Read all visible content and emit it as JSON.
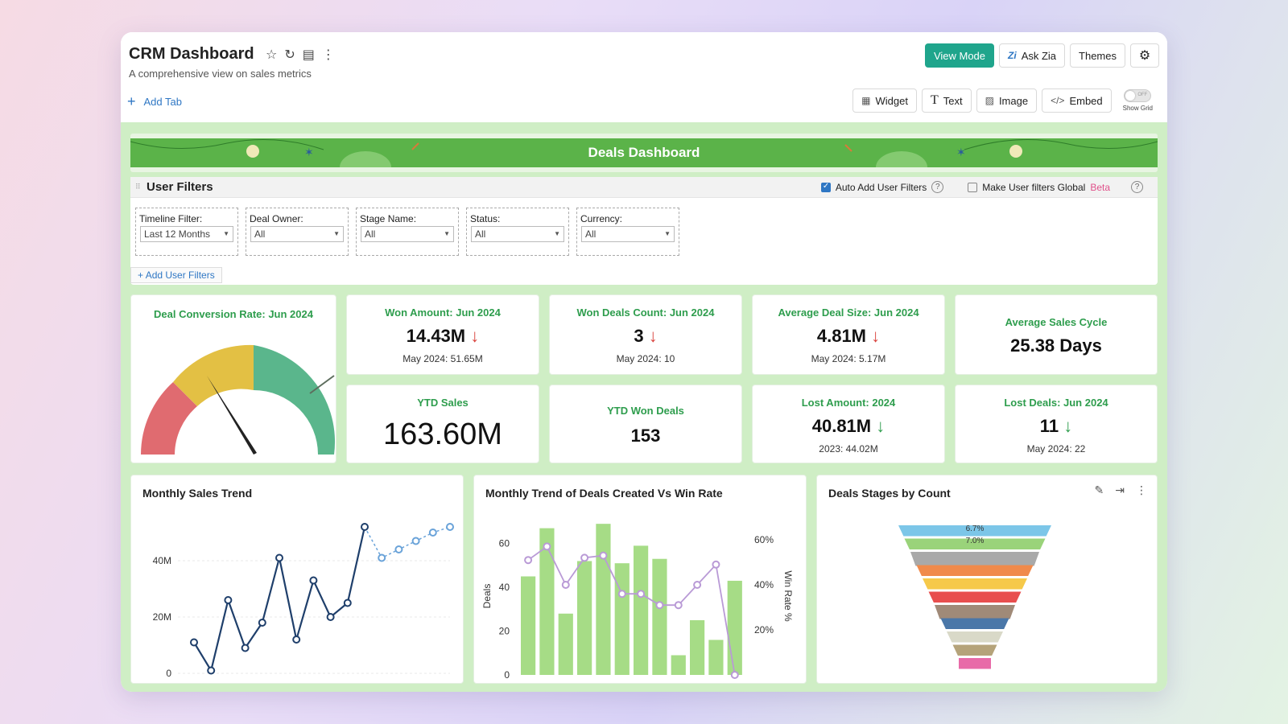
{
  "header": {
    "title": "CRM Dashboard",
    "subtitle": "A comprehensive view on sales metrics",
    "view_mode": "View Mode",
    "ask_zia": "Ask Zia",
    "themes": "Themes",
    "add_tab": "Add Tab"
  },
  "toolbar": {
    "widget": "Widget",
    "text": "Text",
    "image": "Image",
    "embed": "Embed",
    "toggle_state": "OFF",
    "show_grid": "Show Grid"
  },
  "banner": {
    "title": "Deals Dashboard"
  },
  "user_filters": {
    "title": "User Filters",
    "auto_add": "Auto Add User Filters",
    "auto_add_checked": true,
    "make_global": "Make User filters Global",
    "make_global_checked": false,
    "beta": "Beta",
    "add_filters": "Add User Filters",
    "filters": [
      {
        "label": "Timeline Filter:",
        "value": "Last 12 Months"
      },
      {
        "label": "Deal Owner:",
        "value": "All"
      },
      {
        "label": "Stage Name:",
        "value": "All"
      },
      {
        "label": "Status:",
        "value": "All"
      },
      {
        "label": "Currency:",
        "value": "All"
      }
    ]
  },
  "gauge": {
    "title": "Deal Conversion Rate: Jun 2024"
  },
  "kpis": {
    "won_amount": {
      "title": "Won Amount: Jun 2024",
      "value": "14.43M",
      "sub": "May 2024: 51.65M",
      "arrow": "↓"
    },
    "won_count": {
      "title": "Won Deals Count: Jun 2024",
      "value": "3",
      "sub": "May 2024: 10",
      "arrow": "↓"
    },
    "avg_deal": {
      "title": "Average Deal Size: Jun 2024",
      "value": "4.81M",
      "sub": "May 2024: 5.17M",
      "arrow": "↓"
    },
    "avg_cycle": {
      "title": "Average Sales Cycle",
      "value": "25.38 Days"
    },
    "ytd_sales": {
      "title": "YTD Sales",
      "value": "163.60M"
    },
    "ytd_won": {
      "title": "YTD Won Deals",
      "value": "153"
    },
    "lost_amount": {
      "title": "Lost Amount: 2024",
      "value": "40.81M",
      "sub": "2023: 44.02M",
      "arrow": "↓"
    },
    "lost_deals": {
      "title": "Lost Deals: Jun 2024",
      "value": "11",
      "sub": "May 2024: 22",
      "arrow": "↓"
    }
  },
  "chart_data": [
    {
      "type": "line",
      "title": "Monthly Sales Trend",
      "yticks": [
        "0",
        "20M",
        "40M"
      ],
      "ylim": [
        0,
        56
      ],
      "series": [
        {
          "values": [
            11,
            1,
            26,
            9,
            18,
            41,
            12,
            33,
            20,
            25,
            52
          ]
        },
        {
          "values": [
            null,
            null,
            null,
            null,
            null,
            null,
            null,
            null,
            null,
            null,
            52,
            41,
            44,
            47,
            50,
            52
          ],
          "dashed": true
        }
      ]
    },
    {
      "type": "bar",
      "title": "Monthly Trend of Deals Created Vs Win Rate",
      "ylabel": "Deals",
      "y2label": "Win Rate %",
      "yticks": [
        "0",
        "20",
        "40",
        "60"
      ],
      "y2ticks": [
        "20%",
        "40%",
        "60%"
      ],
      "ylim": [
        0,
        72
      ],
      "y2lim": [
        0,
        70
      ],
      "bars": [
        45,
        67,
        28,
        52,
        69,
        51,
        59,
        53,
        9,
        25,
        16,
        43
      ],
      "win_rate": [
        51,
        57,
        40,
        52,
        53,
        36,
        36,
        31,
        31,
        40,
        49,
        0
      ]
    },
    {
      "type": "funnel",
      "title": "Deals Stages by Count",
      "labels": [
        "6.7%",
        "7.0%"
      ],
      "colors": [
        "#7cc6e8",
        "#9ad37a",
        "#a9a9a9",
        "#f08a4b",
        "#f6c94a",
        "#e84e4e",
        "#a08a78",
        "#4a77a8",
        "#d9d9c8",
        "#b5a37a",
        "#e86aa8"
      ]
    }
  ]
}
